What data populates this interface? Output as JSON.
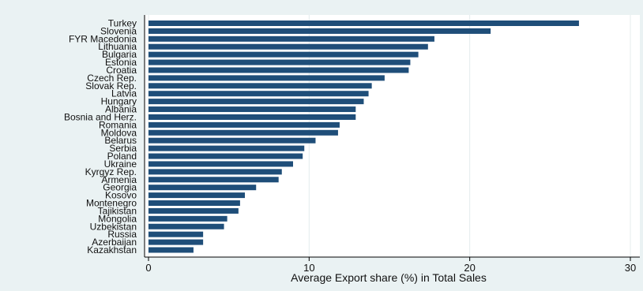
{
  "chart_data": {
    "type": "bar",
    "orientation": "horizontal",
    "title": "",
    "xlabel": "Average Export share (%) in Total Sales",
    "ylabel": "",
    "xlim": [
      0,
      30
    ],
    "xticks": [
      0,
      10,
      20,
      30
    ],
    "grid": true,
    "legend": "none",
    "bar_color": "#1f4e79",
    "background_color": "#eaf2f3",
    "plot_color": "#ffffff",
    "grid_color": "#e4ecee",
    "categories": [
      "Turkey",
      "Slovenia",
      "FYR Macedonia",
      "Lithuania",
      "Bulgaria",
      "Estonia",
      "Croatia",
      "Czech Rep.",
      "Slovak Rep.",
      "Latvia",
      "Hungary",
      "Albania",
      "Bosnia and Herz.",
      "Romania",
      "Moldova",
      "Belarus",
      "Serbia",
      "Poland",
      "Ukraine",
      "Kyrgyz Rep.",
      "Armenia",
      "Georgia",
      "Kosovo",
      "Montenegro",
      "Tajikistan",
      "Mongolia",
      "Uzbekistan",
      "Russia",
      "Azerbaijan",
      "Kazakhstan"
    ],
    "values": [
      26.8,
      21.3,
      17.8,
      17.4,
      16.8,
      16.3,
      16.2,
      14.7,
      13.9,
      13.7,
      13.4,
      12.9,
      12.9,
      11.9,
      11.8,
      10.4,
      9.7,
      9.6,
      9.0,
      8.3,
      8.1,
      6.7,
      6.0,
      5.7,
      5.6,
      4.9,
      4.7,
      3.4,
      3.4,
      2.8
    ]
  }
}
